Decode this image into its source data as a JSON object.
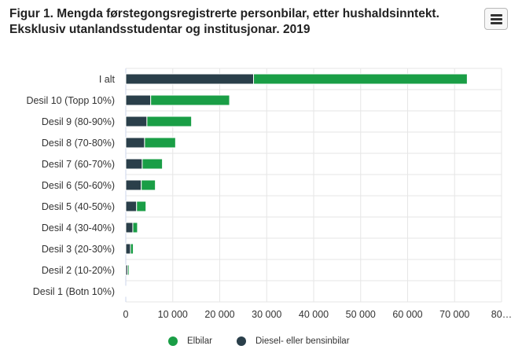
{
  "title_line1": "Figur 1. Mengda førstegongsregistrerte personbilar, etter hushaldsinntekt.",
  "title_line2": "Eksklusiv utanlandsstudentar og institusjonar. 2019",
  "menu_icon": "hamburger-menu-icon",
  "colors": {
    "elbil": "#1a9e46",
    "diesel": "#2a3f4a"
  },
  "chart_data": {
    "type": "bar",
    "orientation": "horizontal",
    "stacked": true,
    "categories": [
      "I alt",
      "Desil 10 (Topp 10%)",
      "Desil 9 (80-90%)",
      "Desil 8 (70-80%)",
      "Desil 7 (60-70%)",
      "Desil 6 (50-60%)",
      "Desil 5 (40-50%)",
      "Desil 4 (30-40%)",
      "Desil 3 (20-30%)",
      "Desil 2 (10-20%)",
      "Desil 1 (Botn 10%)"
    ],
    "series": [
      {
        "name": "Diesel- eller bensinbilar",
        "values": [
          27200,
          5300,
          4500,
          4000,
          3500,
          3300,
          2300,
          1500,
          1000,
          400,
          100
        ]
      },
      {
        "name": "Elbilar",
        "values": [
          45500,
          16800,
          9500,
          6600,
          4300,
          3000,
          2000,
          1000,
          600,
          300,
          150
        ]
      }
    ],
    "x_ticks": [
      "0",
      "10 000",
      "20 000",
      "30 000",
      "40 000",
      "50 000",
      "60 000",
      "70 000",
      "80…"
    ],
    "xlim": [
      0,
      80000
    ],
    "grid": true,
    "legend_position": "bottom"
  }
}
